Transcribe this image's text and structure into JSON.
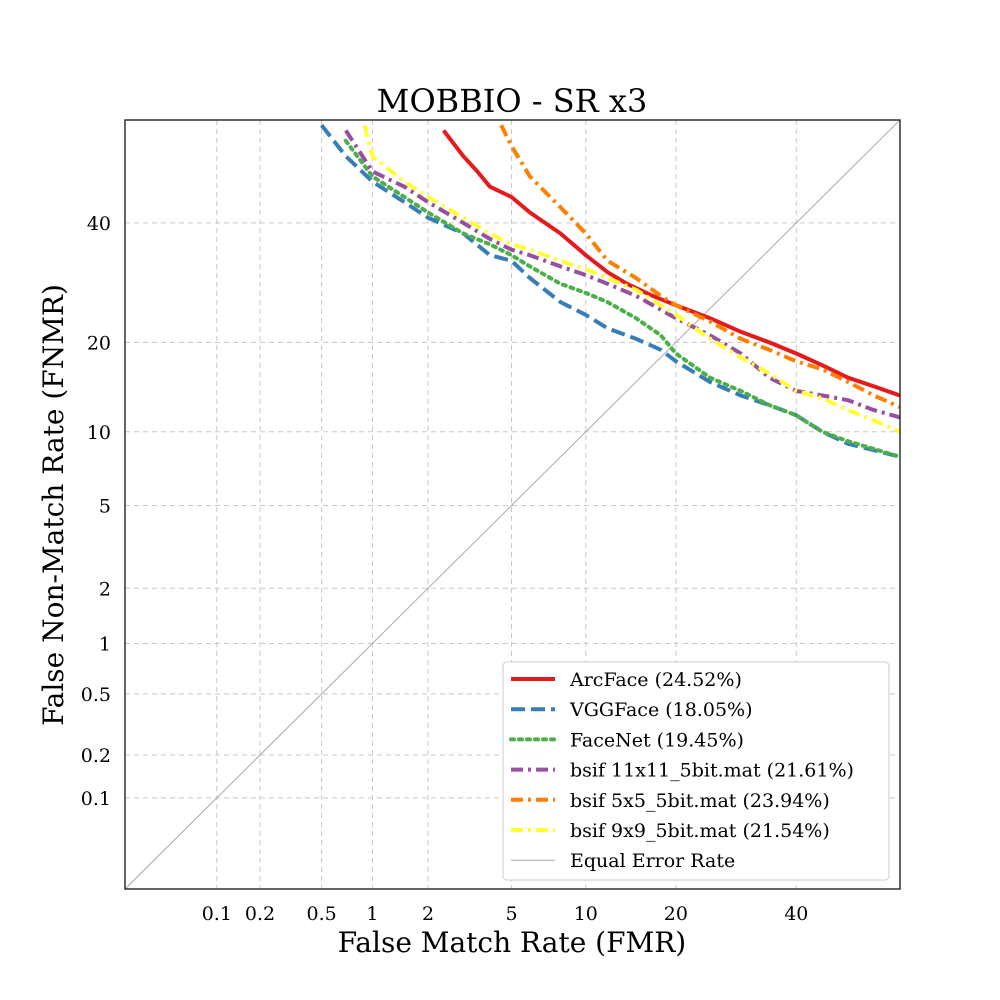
{
  "chart_data": {
    "type": "line",
    "title": "MOBBIO - SR x3",
    "xlabel": "False Match Rate (FMR)",
    "ylabel": "False Non-Match Rate (FNMR)",
    "xscale": "probit",
    "yscale": "probit",
    "xlim": [
      0.02,
      60
    ],
    "ylim": [
      0.02,
      60
    ],
    "x_ticks": [
      0.1,
      0.2,
      0.5,
      1,
      2,
      5,
      10,
      20,
      40
    ],
    "x_tick_labels": [
      "0.1",
      "0.2",
      "0.5",
      "1",
      "2",
      "5",
      "10",
      "20",
      "40"
    ],
    "y_ticks": [
      0.1,
      0.2,
      0.5,
      1,
      2,
      5,
      10,
      20,
      40
    ],
    "y_tick_labels": [
      "0.1",
      "0.2",
      "0.5",
      "1",
      "2",
      "5",
      "10",
      "20",
      "40"
    ],
    "grid": true,
    "legend_position": "lower-right",
    "series": [
      {
        "name": "ArcFace (24.52%)",
        "color": "#e41a1c",
        "style": "solid",
        "x": [
          2.4,
          3,
          3.5,
          4,
          5,
          6,
          8,
          10,
          12,
          14,
          17,
          20,
          25,
          30,
          35,
          40,
          45,
          50,
          55,
          60
        ],
        "y": [
          58,
          53,
          50,
          47,
          45,
          42,
          38,
          34,
          31,
          29,
          27,
          25.5,
          23.5,
          21.5,
          20,
          18.5,
          17,
          15.5,
          14.5,
          13.5
        ]
      },
      {
        "name": "VGGFace (18.05%)",
        "color": "#377eb8",
        "style": "dashed",
        "x": [
          0.5,
          0.7,
          1,
          1.5,
          2,
          3,
          4,
          5,
          6,
          8,
          10,
          12,
          15,
          18,
          20,
          25,
          30,
          35,
          40,
          45,
          50,
          55,
          60
        ],
        "y": [
          59,
          53,
          48,
          44,
          41,
          38,
          34,
          33,
          30,
          26,
          24,
          22,
          20.5,
          19,
          17.5,
          15,
          13.5,
          12.5,
          11.5,
          10,
          9,
          8.5,
          8
        ]
      },
      {
        "name": "FaceNet (19.45%)",
        "color": "#4daf4a",
        "style": "dotted",
        "x": [
          0.7,
          1,
          1.5,
          2,
          3,
          4,
          5,
          6,
          8,
          10,
          12,
          15,
          18,
          20,
          25,
          30,
          35,
          40,
          45,
          50,
          55,
          60
        ],
        "y": [
          56,
          49,
          45,
          42,
          38,
          36,
          34,
          32,
          29,
          27.5,
          26,
          23.5,
          21,
          18.5,
          15.5,
          14,
          12.5,
          11.5,
          10,
          9.2,
          8.6,
          8
        ]
      },
      {
        "name": "bsif 11x11_5bit.mat (21.61%)",
        "color": "#984ea3",
        "style": "dashdot",
        "x": [
          0.7,
          1,
          1.5,
          2,
          3,
          4,
          5,
          6,
          8,
          10,
          12,
          15,
          20,
          25,
          30,
          35,
          40,
          45,
          50,
          55,
          60
        ],
        "y": [
          58,
          50,
          47,
          44,
          40,
          37,
          35,
          34,
          32,
          30.5,
          29,
          27,
          23.5,
          21,
          18.5,
          15.5,
          14,
          13.5,
          13,
          12,
          11.3
        ]
      },
      {
        "name": "bsif 5x5_5bit.mat (23.94%)",
        "color": "#ff7f00",
        "style": "dashdot",
        "x": [
          4.5,
          5,
          6,
          8,
          10,
          12,
          15,
          18,
          20,
          25,
          30,
          35,
          40,
          45,
          50,
          55,
          60
        ],
        "y": [
          59,
          55,
          49,
          43,
          38,
          33,
          30,
          27,
          25.5,
          23,
          20.5,
          19,
          17.5,
          16.5,
          15,
          13.5,
          12.3
        ]
      },
      {
        "name": "bsif 9x9_5bit.mat (21.54%)",
        "color": "#ffff33",
        "style": "dashdot",
        "x": [
          0.9,
          1,
          1.5,
          2,
          3,
          4,
          5,
          6,
          8,
          10,
          12,
          15,
          20,
          25,
          30,
          35,
          40,
          45,
          50,
          55,
          60
        ],
        "y": [
          59,
          53,
          48,
          45,
          41,
          38,
          36,
          35,
          33,
          31.5,
          30,
          28,
          24,
          20.5,
          18,
          16,
          14,
          13.2,
          12,
          11,
          10
        ]
      },
      {
        "name": "Equal Error Rate",
        "color": "#aaaaaa",
        "style": "thin",
        "x": [
          0.02,
          60
        ],
        "y": [
          0.02,
          60
        ]
      }
    ]
  }
}
